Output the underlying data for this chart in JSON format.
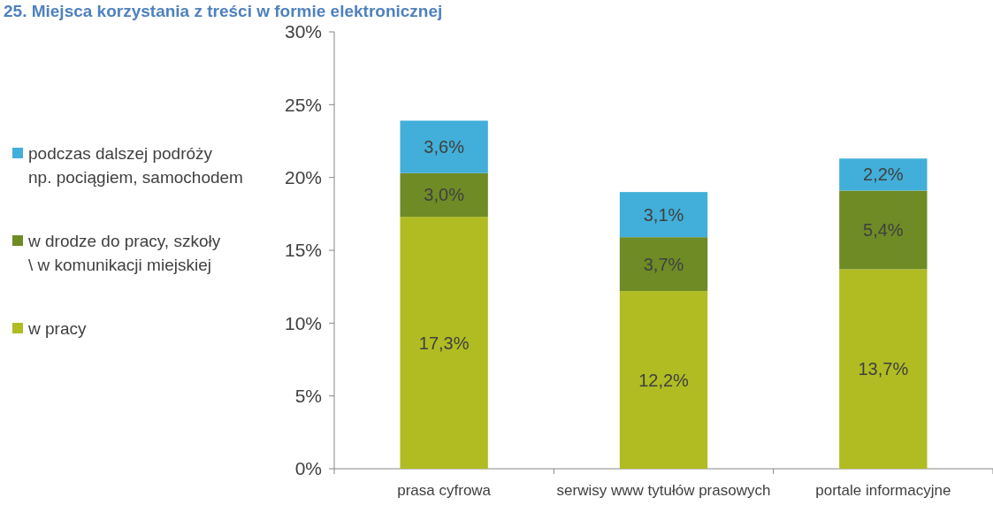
{
  "chart_data": {
    "type": "bar",
    "title": "25. Miejsca korzystania z treści w formie elektronicznej",
    "categories": [
      "prasa cyfrowa",
      "serwisy www tytułów prasowych",
      "portale informacyjne"
    ],
    "stacked": true,
    "series": [
      {
        "name": "w pracy",
        "color": "#b0bc22",
        "values": [
          17.3,
          12.2,
          13.7
        ],
        "value_labels": [
          "17,3%",
          "12,2%",
          "13,7%"
        ]
      },
      {
        "name": "w drodze do pracy, szkoły \\ w komunikacji miejskiej",
        "color": "#6e8b25",
        "values": [
          3.0,
          3.7,
          5.4
        ],
        "value_labels": [
          "3,0%",
          "3,7%",
          "5,4%"
        ]
      },
      {
        "name": "podczas dalszej podróży np. pociągiem, samochodem",
        "color": "#41afd9",
        "values": [
          3.6,
          3.1,
          2.2
        ],
        "value_labels": [
          "3,6%",
          "3,1%",
          "2,2%"
        ]
      }
    ],
    "ylim": [
      0,
      30
    ],
    "yticks": [
      {
        "value": 0,
        "label": "0%"
      },
      {
        "value": 5,
        "label": "5%"
      },
      {
        "value": 10,
        "label": "10%"
      },
      {
        "value": 15,
        "label": "15%"
      },
      {
        "value": 20,
        "label": "20%"
      },
      {
        "value": 25,
        "label": "25%"
      },
      {
        "value": 30,
        "label": "30%"
      }
    ],
    "grid": false,
    "legend": "left"
  }
}
